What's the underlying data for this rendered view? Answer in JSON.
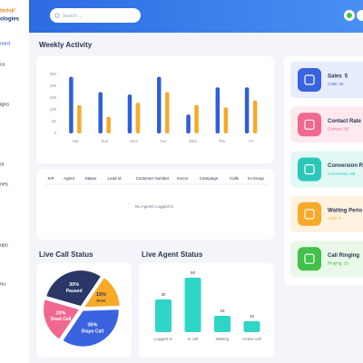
{
  "sidebar": {
    "logo": [
      "terisk'",
      "ologies"
    ],
    "menu": [
      "oard",
      "cs",
      "igns",
      "st",
      "nes",
      "ups",
      "nu"
    ]
  },
  "search_placeholder": "Search ...",
  "weekly_activity": {
    "type": "bar",
    "title": "Weekly Activity",
    "categories": [
      "Sat",
      "Sun",
      "Mon",
      "Tue",
      "Wed",
      "Thu",
      "Fri"
    ],
    "series": [
      {
        "color": "#2f5fd8",
        "values": [
          240,
          175,
          165,
          240,
          80,
          195,
          195
        ]
      },
      {
        "color": "#f7a928",
        "values": [
          120,
          70,
          130,
          175,
          120,
          110,
          140
        ]
      }
    ],
    "ylim": [
      0,
      250
    ],
    "yticks": [
      0,
      50,
      100,
      150,
      200,
      250
    ]
  },
  "agents_table": {
    "columns": [
      "SIP",
      "Agent",
      "Status",
      "Lead Id",
      "Customer Number",
      "mrcos",
      "Campaign",
      "Calls",
      "In-Group"
    ],
    "empty": "No Agents Logged In"
  },
  "live_call_status": {
    "type": "pie",
    "title": "Live Call Status",
    "categories": [
      "Paused",
      "Break",
      "Dispo Call",
      "Dead Call"
    ],
    "values": [
      30,
      15,
      35,
      20
    ],
    "value_labels": [
      "30%",
      "15%",
      "35%",
      "20%"
    ],
    "colors": [
      "#2b3766",
      "#f7a928",
      "#3a63e0",
      "#f0678f"
    ]
  },
  "live_agent_status": {
    "type": "bar",
    "title": "Live Agent Status",
    "categories": [
      "Logged In",
      "In call",
      "Waiting",
      "Active call"
    ],
    "values": [
      30,
      50,
      15,
      10
    ],
    "color": "#2fd6c6"
  },
  "stats": [
    {
      "title": "Sales",
      "value": "5",
      "detail": "Calls: 25",
      "color": "#3a63e0",
      "bg": "#e7edfd"
    },
    {
      "title": "Contact Rate",
      "detail": "Contact: 30",
      "color": "#f0678f",
      "bg": "#fde9ee"
    },
    {
      "title": "Conversion R",
      "detail": "Conversion: 85",
      "color": "#2cc7b9",
      "bg": "#e1f8f5"
    },
    {
      "title": "Waiting Perio",
      "detail": "Calls: 0",
      "color": "#f7a928",
      "bg": "#fff3e0"
    },
    {
      "title": "Call Ringing",
      "detail": "Ringing: 15",
      "color": "#42c04a",
      "bg": "#e9f8e9"
    }
  ]
}
